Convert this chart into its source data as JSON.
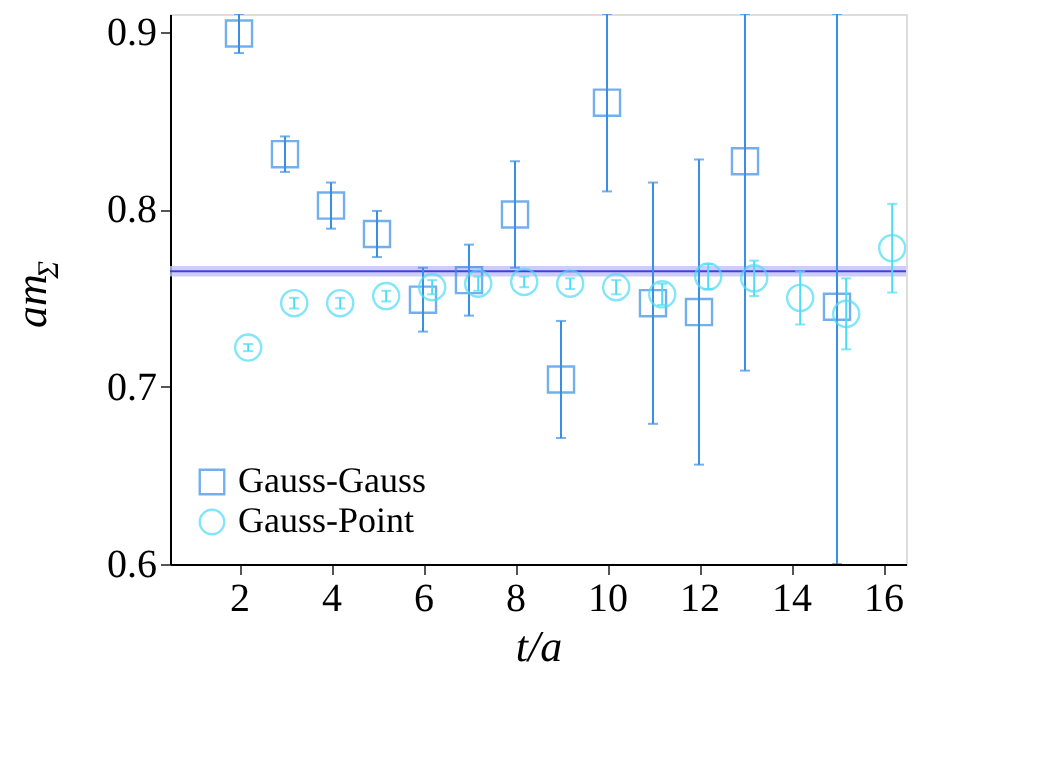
{
  "chart_data": {
    "type": "scatter",
    "xlabel": "t/a",
    "ylabel": "am$_{Σ}$",
    "xlim": [
      0.5,
      16.5
    ],
    "xticks": [
      2,
      4,
      6,
      8,
      10,
      12,
      14,
      16
    ],
    "ylim": [
      0.6,
      0.91
    ],
    "yticks": [
      0.6,
      0.7,
      0.8,
      0.9
    ],
    "series": [
      {
        "name": "Gauss-Gauss",
        "color": "#3a8ee6",
        "marker": "square",
        "x": [
          2,
          3,
          4,
          5,
          6,
          7,
          8,
          9,
          10,
          11,
          12,
          13,
          15
        ],
        "values": [
          0.899,
          0.831,
          0.802,
          0.786,
          0.749,
          0.76,
          0.797,
          0.704,
          0.86,
          0.747,
          0.742,
          0.827,
          0.745
        ],
        "errors": [
          0.011,
          0.01,
          0.013,
          0.013,
          0.018,
          0.02,
          0.03,
          0.033,
          0.05,
          0.068,
          0.086,
          [
            0.709,
            0.91
          ],
          [
            0.6,
            0.91
          ]
        ]
      },
      {
        "name": "Gauss-Point",
        "color": "#4ddcf5",
        "marker": "circle",
        "x": [
          2.2,
          3.2,
          4.2,
          5.2,
          6.2,
          7.2,
          8.2,
          9.2,
          10.2,
          11.2,
          12.2,
          13.2,
          14.2,
          15.2,
          16.2
        ],
        "values": [
          0.722,
          0.747,
          0.747,
          0.751,
          0.756,
          0.758,
          0.759,
          0.758,
          0.756,
          0.752,
          0.762,
          0.761,
          0.75,
          0.741,
          0.778
        ],
        "errors": [
          0.002,
          0.003,
          0.003,
          0.003,
          0.004,
          0.004,
          0.003,
          0.003,
          0.004,
          0.006,
          0.007,
          0.01,
          0.015,
          0.02,
          0.025
        ]
      }
    ],
    "bands": [
      {
        "axis": "y",
        "from": 0.762,
        "to": 0.768,
        "color": "#c0c0f4"
      }
    ],
    "ref_lines": [
      {
        "axis": "y",
        "value": 0.765,
        "color": "#4040e0"
      }
    ],
    "legend": "bottom",
    "grid": false
  }
}
